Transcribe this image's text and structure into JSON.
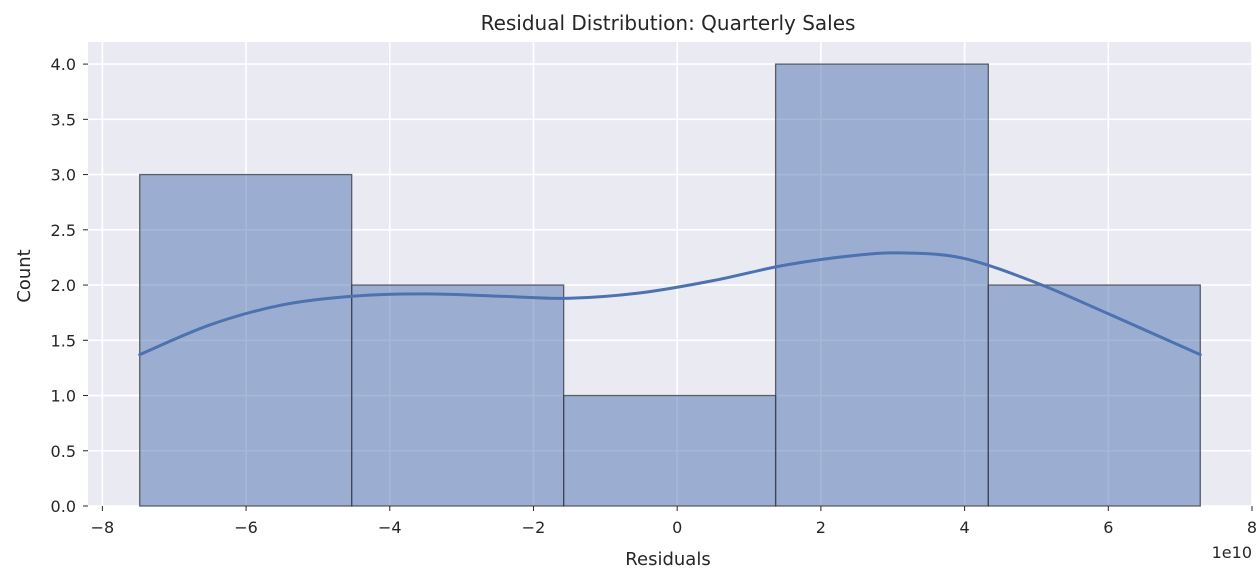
{
  "chart_data": {
    "type": "histogram",
    "title": "Residual Distribution: Quarterly Sales",
    "xlabel": "Residuals",
    "ylabel": "Count",
    "x_offset_label": "1e10",
    "x_scale": 10000000000,
    "xlim": [
      -8.2,
      8.0
    ],
    "ylim": [
      0,
      4.2
    ],
    "grid": true,
    "x_ticks": [
      -8,
      -6,
      -4,
      -2,
      0,
      2,
      4,
      6,
      8
    ],
    "x_tick_labels": [
      "−8",
      "−6",
      "−4",
      "−2",
      "0",
      "2",
      "4",
      "6",
      "8"
    ],
    "y_ticks": [
      0.0,
      0.5,
      1.0,
      1.5,
      2.0,
      2.5,
      3.0,
      3.5,
      4.0
    ],
    "y_tick_labels": [
      "0.0",
      "0.5",
      "1.0",
      "1.5",
      "2.0",
      "2.5",
      "3.0",
      "3.5",
      "4.0"
    ],
    "bin_edges": [
      -7.48,
      -4.53,
      -1.58,
      1.37,
      4.33,
      7.28
    ],
    "counts": [
      3,
      2,
      1,
      4,
      2
    ],
    "kde": {
      "x": [
        -7.48,
        -6.5,
        -5.5,
        -4.5,
        -3.5,
        -2.5,
        -1.5,
        -0.5,
        0.5,
        1.5,
        2.5,
        3.2,
        4.0,
        5.0,
        6.0,
        7.28
      ],
      "y": [
        1.37,
        1.64,
        1.82,
        1.9,
        1.92,
        1.9,
        1.88,
        1.93,
        2.04,
        2.18,
        2.27,
        2.29,
        2.24,
        2.02,
        1.74,
        1.37
      ]
    },
    "colors": {
      "bar_fill": "#4c72b0",
      "bar_edge": "#3a3f4a",
      "kde_line": "#4c72b0",
      "plot_bg": "#eaeaf2",
      "grid": "#ffffff"
    }
  }
}
